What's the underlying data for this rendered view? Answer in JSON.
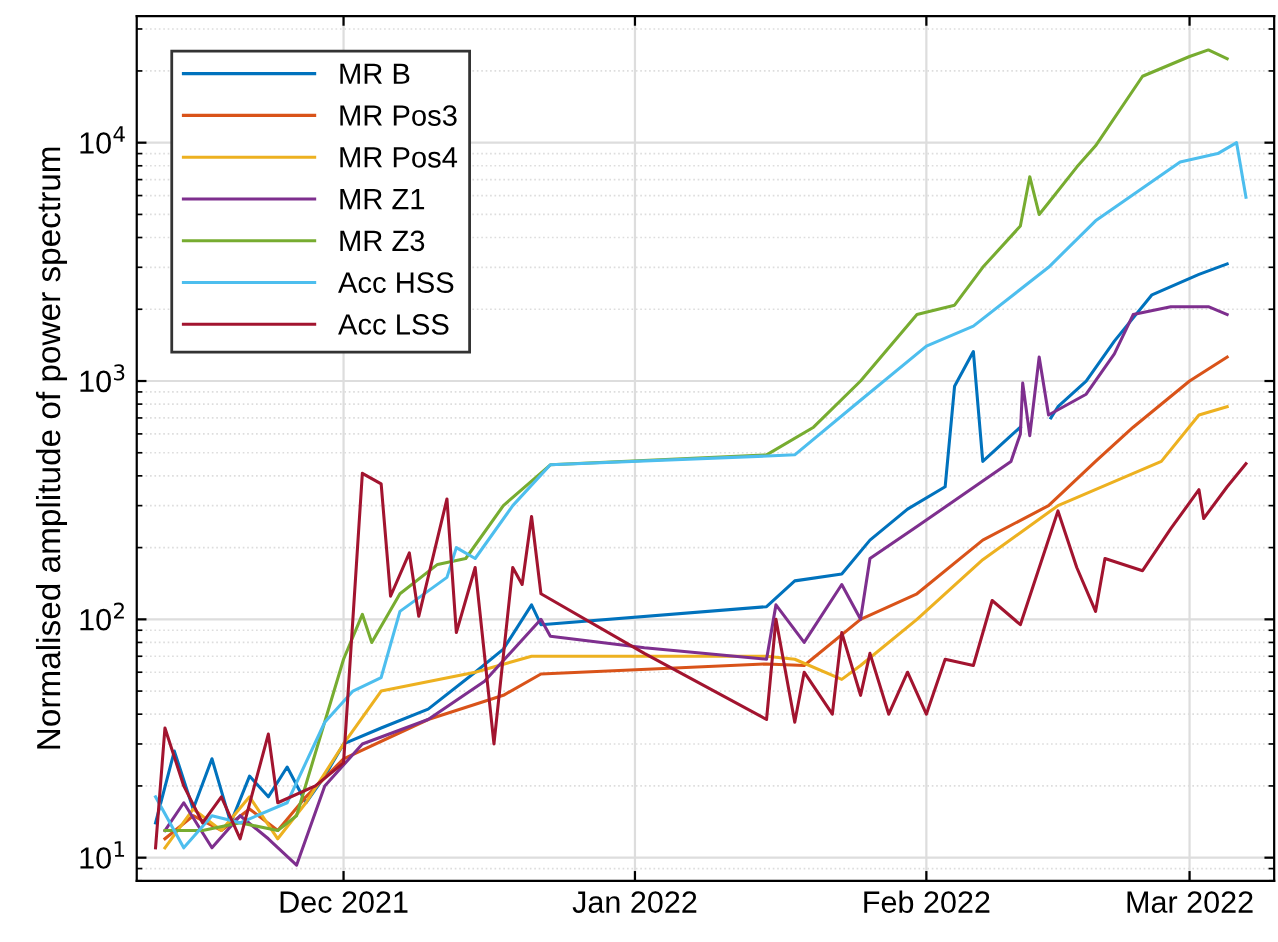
{
  "chart_data": {
    "type": "line",
    "ylabel": "Normalised amplitude of power spectrum",
    "log": "y",
    "grid": true,
    "legend": "top left",
    "xlim": [
      "2021-11-09",
      "2022-03-10"
    ],
    "xticks": [
      {
        "value": "2021-12-01",
        "label": "Dec 2021"
      },
      {
        "value": "2022-01-01",
        "label": "Jan 2022"
      },
      {
        "value": "2022-02-01",
        "label": "Feb 2022"
      },
      {
        "value": "2022-03-01",
        "label": "Mar 2022"
      }
    ],
    "ylim": [
      8,
      34000
    ],
    "yticks": [
      {
        "value": 10,
        "label": "10$^{1}$"
      },
      {
        "value": 100,
        "label": "10$^{2}$"
      },
      {
        "value": 1000,
        "label": "10$^{3}$"
      },
      {
        "value": 10000,
        "label": "10$^{4}$"
      }
    ],
    "series": [
      {
        "name": "MR B",
        "color": "#0072bd",
        "x": [
          "2021-11-11",
          "2021-11-13",
          "2021-11-15",
          "2021-11-17",
          "2021-11-19",
          "2021-11-21",
          "2021-11-23",
          "2021-11-25",
          "2021-11-27",
          "2021-11-29",
          "2021-12-01",
          "2021-12-05",
          "2021-12-10",
          "2021-12-15",
          "2021-12-18",
          "2021-12-21",
          "2021-12-22",
          "2022-01-15",
          "2022-01-18",
          "2022-01-23",
          "2022-01-26",
          "2022-01-30",
          "2022-02-03",
          "2022-02-04",
          "2022-02-06",
          "2022-02-07",
          "2022-02-10",
          "2022-02-11",
          "2022-02-11T06:00",
          "2022-02-14",
          "2022-02-14T06:00",
          "2022-02-15",
          "2022-02-18",
          "2022-02-21",
          "2022-02-25",
          "2022-03-02",
          "2022-03-05"
        ],
        "values": [
          14,
          28,
          16,
          26,
          14,
          22,
          18,
          24,
          17,
          22,
          30,
          35,
          42,
          60,
          75,
          115,
          95,
          113,
          145,
          155,
          215,
          290,
          360,
          950,
          1330,
          460,
          590,
          640,
          null,
          null,
          700,
          780,
          1000,
          1470,
          2300,
          2800,
          3100
        ]
      },
      {
        "name": "MR Pos3",
        "color": "#d95319",
        "x": [
          "2021-11-12",
          "2021-11-15",
          "2021-11-18",
          "2021-11-21",
          "2021-11-24",
          "2021-11-27",
          "2021-12-01",
          "2021-12-10",
          "2021-12-18",
          "2021-12-22",
          "2022-01-15",
          "2022-01-19",
          "2022-01-25",
          "2022-01-31",
          "2022-02-07",
          "2022-02-14",
          "2022-02-19",
          "2022-02-23",
          "2022-03-01",
          "2022-03-05"
        ],
        "values": [
          12,
          15,
          13,
          16,
          13,
          18,
          26,
          38,
          48,
          59,
          65,
          64,
          100,
          128,
          215,
          300,
          460,
          640,
          1000,
          1260
        ]
      },
      {
        "name": "MR Pos4",
        "color": "#edb120",
        "x": [
          "2021-11-12",
          "2021-11-15",
          "2021-11-18",
          "2021-11-21",
          "2021-11-24",
          "2021-11-27",
          "2021-12-01",
          "2021-12-05",
          "2021-12-15",
          "2021-12-21",
          "2022-01-15",
          "2022-01-18",
          "2022-01-23",
          "2022-01-25",
          "2022-01-31",
          "2022-02-07",
          "2022-02-15",
          "2022-02-26",
          "2022-03-02",
          "2022-03-05"
        ],
        "values": [
          11,
          16,
          13,
          18,
          12,
          17,
          30,
          50,
          60,
          70,
          70,
          68,
          56,
          64,
          100,
          178,
          300,
          460,
          720,
          780
        ]
      },
      {
        "name": "MR Z1",
        "color": "#7e2f8e",
        "x": [
          "2021-11-12",
          "2021-11-14",
          "2021-11-17",
          "2021-11-20",
          "2021-11-23",
          "2021-11-26",
          "2021-11-29",
          "2021-12-03",
          "2021-12-10",
          "2021-12-16",
          "2021-12-22",
          "2021-12-23",
          "2022-01-02",
          "2022-01-15",
          "2022-01-16",
          "2022-01-19",
          "2022-01-23",
          "2022-01-25",
          "2022-01-26",
          "2022-01-31",
          "2022-02-10",
          "2022-02-11",
          "2022-02-11T06:00",
          "2022-02-12",
          "2022-02-13",
          "2022-02-14",
          "2022-02-18",
          "2022-02-21",
          "2022-02-23",
          "2022-02-27",
          "2022-03-03",
          "2022-03-05"
        ],
        "values": [
          13,
          17,
          11,
          15,
          12,
          9.3,
          20,
          30,
          38,
          55,
          100,
          85,
          76,
          68,
          115,
          80,
          140,
          100,
          180,
          245,
          460,
          600,
          980,
          590,
          1260,
          720,
          880,
          1300,
          1900,
          2050,
          2050,
          1900
        ]
      },
      {
        "name": "MR Z3",
        "color": "#77ac30",
        "x": [
          "2021-11-12",
          "2021-11-16",
          "2021-11-20",
          "2021-11-24",
          "2021-11-26",
          "2021-12-01",
          "2021-12-03",
          "2021-12-04",
          "2021-12-07",
          "2021-12-11",
          "2021-12-14",
          "2021-12-18",
          "2021-12-23",
          "2022-01-15",
          "2022-01-20",
          "2022-01-25",
          "2022-01-31",
          "2022-02-04",
          "2022-02-07",
          "2022-02-11",
          "2022-02-12",
          "2022-02-13",
          "2022-02-14",
          "2022-02-17",
          "2022-02-19",
          "2022-02-24",
          "2022-03-01",
          "2022-03-03",
          "2022-03-05"
        ],
        "values": [
          13,
          13,
          14,
          13,
          15,
          68,
          105,
          80,
          128,
          170,
          180,
          300,
          445,
          490,
          640,
          1000,
          1900,
          2080,
          3000,
          4470,
          7200,
          5000,
          5600,
          7900,
          9700,
          19000,
          23000,
          24500,
          22500
        ]
      },
      {
        "name": "Acc HSS",
        "color": "#4dbeee",
        "x": [
          "2021-11-11",
          "2021-11-14",
          "2021-11-17",
          "2021-11-20",
          "2021-11-25",
          "2021-11-29",
          "2021-12-02",
          "2021-12-05",
          "2021-12-07",
          "2021-12-12",
          "2021-12-13",
          "2021-12-15",
          "2021-12-19",
          "2021-12-23",
          "2022-01-18",
          "2022-01-25",
          "2022-02-01",
          "2022-02-06",
          "2022-02-14",
          "2022-02-19",
          "2022-02-28",
          "2022-03-04",
          "2022-03-06",
          "2022-03-07"
        ],
        "values": [
          18,
          11,
          15,
          14,
          17,
          37,
          50,
          57,
          108,
          150,
          200,
          180,
          300,
          445,
          490,
          830,
          1400,
          1700,
          3000,
          4700,
          8300,
          9000,
          10000,
          5900
        ]
      },
      {
        "name": "Acc LSS",
        "color": "#a2142f",
        "x": [
          "2021-11-11",
          "2021-11-12",
          "2021-11-14",
          "2021-11-16",
          "2021-11-18",
          "2021-11-20",
          "2021-11-23",
          "2021-11-24",
          "2021-11-28",
          "2021-12-01",
          "2021-12-03",
          "2021-12-05",
          "2021-12-06",
          "2021-12-08",
          "2021-12-09",
          "2021-12-12",
          "2021-12-13",
          "2021-12-15",
          "2021-12-17",
          "2021-12-19",
          "2021-12-20",
          "2021-12-21",
          "2021-12-22",
          "2022-01-02",
          "2022-01-15",
          "2022-01-16",
          "2022-01-18",
          "2022-01-19",
          "2022-01-22",
          "2022-01-23",
          "2022-01-25",
          "2022-01-26",
          "2022-01-28",
          "2022-01-30",
          "2022-02-01",
          "2022-02-03",
          "2022-02-06",
          "2022-02-08",
          "2022-02-11",
          "2022-02-15",
          "2022-02-17",
          "2022-02-19",
          "2022-02-20",
          "2022-02-24",
          "2022-02-27",
          "2022-03-02",
          "2022-03-02T12:00",
          "2022-03-05",
          "2022-03-07"
        ],
        "values": [
          11,
          35,
          20,
          14,
          18,
          12,
          33,
          17,
          20,
          25,
          410,
          370,
          125,
          190,
          103,
          320,
          88,
          165,
          30,
          165,
          140,
          270,
          128,
          72,
          38,
          100,
          37,
          60,
          40,
          88,
          48,
          72,
          40,
          60,
          40,
          68,
          64,
          120,
          95,
          285,
          165,
          108,
          180,
          160,
          240,
          350,
          265,
          360,
          450
        ]
      }
    ]
  }
}
